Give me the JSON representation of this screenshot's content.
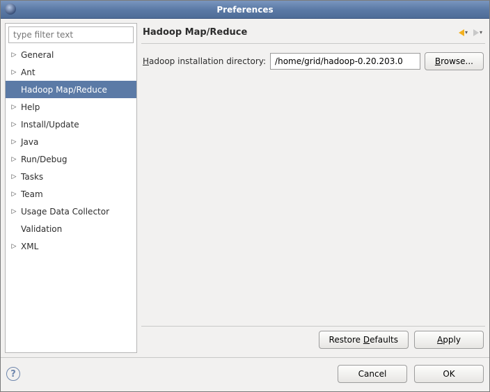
{
  "window": {
    "title": "Preferences"
  },
  "filter": {
    "placeholder": "type filter text"
  },
  "sidebar": {
    "items": [
      {
        "label": "General",
        "expandable": true,
        "selected": false
      },
      {
        "label": "Ant",
        "expandable": true,
        "selected": false
      },
      {
        "label": "Hadoop Map/Reduce",
        "expandable": false,
        "selected": true
      },
      {
        "label": "Help",
        "expandable": true,
        "selected": false
      },
      {
        "label": "Install/Update",
        "expandable": true,
        "selected": false
      },
      {
        "label": "Java",
        "expandable": true,
        "selected": false
      },
      {
        "label": "Run/Debug",
        "expandable": true,
        "selected": false
      },
      {
        "label": "Tasks",
        "expandable": true,
        "selected": false
      },
      {
        "label": "Team",
        "expandable": true,
        "selected": false
      },
      {
        "label": "Usage Data Collector",
        "expandable": true,
        "selected": false
      },
      {
        "label": "Validation",
        "expandable": false,
        "selected": false
      },
      {
        "label": "XML",
        "expandable": true,
        "selected": false
      }
    ]
  },
  "page": {
    "title": "Hadoop Map/Reduce",
    "field_label_pre": "H",
    "field_label_rest": "adoop installation directory:",
    "field_value": "/home/grid/hadoop-0.20.203.0",
    "browse_mn": "B",
    "browse_rest": "rowse...",
    "restore_pre": "Restore ",
    "restore_mn": "D",
    "restore_rest": "efaults",
    "apply_mn": "A",
    "apply_rest": "pply"
  },
  "dialog": {
    "cancel": "Cancel",
    "ok": "OK"
  }
}
